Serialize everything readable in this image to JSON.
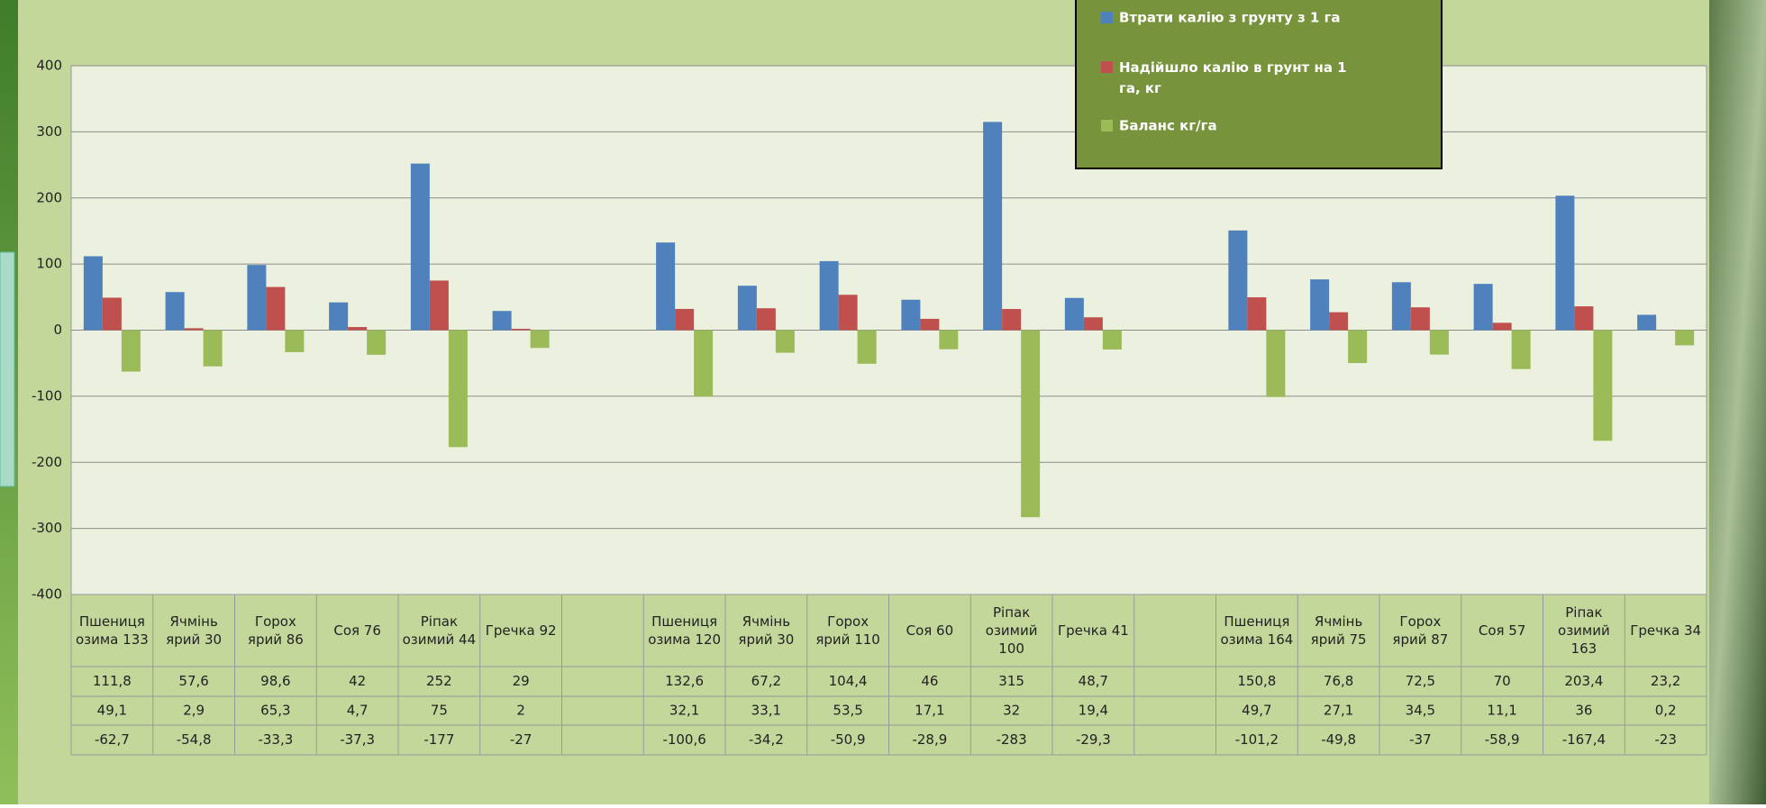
{
  "chart_data": {
    "type": "bar",
    "categories": [
      "Пшениця озима 133",
      "Ячмінь ярий 30",
      "Горох ярий 86",
      "Соя 76",
      "Ріпак озимий 44",
      "Гречка 92",
      null,
      "Пшениця озима 120",
      "Ячмінь ярий 30",
      "Горох ярий 110",
      "Соя 60",
      "Ріпак озимий 100",
      "Гречка 41",
      null,
      "Пшениця озима 164",
      "Ячмінь ярий 75",
      "Горох ярий 87",
      "Соя 57",
      "Ріпак озимий 163",
      "Гречка 34"
    ],
    "series": [
      {
        "name": "Втрати калію з грунту з 1 га",
        "color": "#4f81bd",
        "values": [
          111.8,
          57.6,
          98.6,
          42,
          252,
          29,
          null,
          132.6,
          67.2,
          104.4,
          46,
          315,
          48.7,
          null,
          150.8,
          76.8,
          72.5,
          70,
          203.4,
          23.2
        ],
        "value_labels": [
          "111,8",
          "57,6",
          "98,6",
          "42",
          "252",
          "29",
          null,
          "132,6",
          "67,2",
          "104,4",
          "46",
          "315",
          "48,7",
          null,
          "150,8",
          "76,8",
          "72,5",
          "70",
          "203,4",
          "23,2"
        ]
      },
      {
        "name": "Надійшло калію в грунт на 1 га, кг",
        "color": "#c0504d",
        "values": [
          49.1,
          2.9,
          65.3,
          4.7,
          75,
          2,
          null,
          32.1,
          33.1,
          53.5,
          17.1,
          32,
          19.4,
          null,
          49.7,
          27.1,
          34.5,
          11.1,
          36,
          0.2
        ],
        "value_labels": [
          "49,1",
          "2,9",
          "65,3",
          "4,7",
          "75",
          "2",
          null,
          "32,1",
          "33,1",
          "53,5",
          "17,1",
          "32",
          "19,4",
          null,
          "49,7",
          "27,1",
          "34,5",
          "11,1",
          "36",
          "0,2"
        ]
      },
      {
        "name": "Баланс кг/га",
        "color": "#9bbb59",
        "values": [
          -62.7,
          -54.8,
          -33.3,
          -37.3,
          -177,
          -27,
          null,
          -100.6,
          -34.2,
          -50.9,
          -28.9,
          -283,
          -29.3,
          null,
          -101.2,
          -49.8,
          -37,
          -58.9,
          -167.4,
          -23
        ],
        "value_labels": [
          "-62,7",
          "-54,8",
          "-33,3",
          "-37,3",
          "-177",
          "-27",
          null,
          "-100,6",
          "-34,2",
          "-50,9",
          "-28,9",
          "-283",
          "-29,3",
          null,
          "-101,2",
          "-49,8",
          "-37",
          "-58,9",
          "-167,4",
          "-23"
        ]
      }
    ],
    "ylim": [
      -400,
      400
    ],
    "yticks": [
      -400,
      -300,
      -200,
      -100,
      0,
      100,
      200,
      300,
      400
    ],
    "grid": true,
    "legend": "top-right"
  }
}
